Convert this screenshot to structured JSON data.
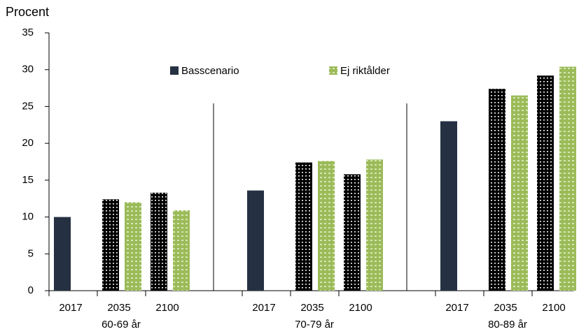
{
  "chart_data": {
    "type": "bar",
    "y_label": "Procent",
    "groups": [
      "60-69 år",
      "70-79 år",
      "80-89 år"
    ],
    "categories": [
      "2017",
      "2035",
      "2100",
      "2017",
      "2035",
      "2100",
      "2017",
      "2035",
      "2100"
    ],
    "series": [
      {
        "name": "Basscenario",
        "color": "#253142",
        "values": [
          10.0,
          12.4,
          13.3,
          13.6,
          17.4,
          15.8,
          23.0,
          27.4,
          29.2
        ]
      },
      {
        "name": "Ej riktålder",
        "color": "#9bbb59",
        "values": [
          null,
          12.0,
          10.9,
          null,
          17.6,
          17.8,
          null,
          26.5,
          30.4
        ]
      }
    ],
    "ylim": [
      0,
      35
    ],
    "yticks": [
      0,
      5,
      10,
      15,
      20,
      25,
      30,
      35
    ]
  }
}
